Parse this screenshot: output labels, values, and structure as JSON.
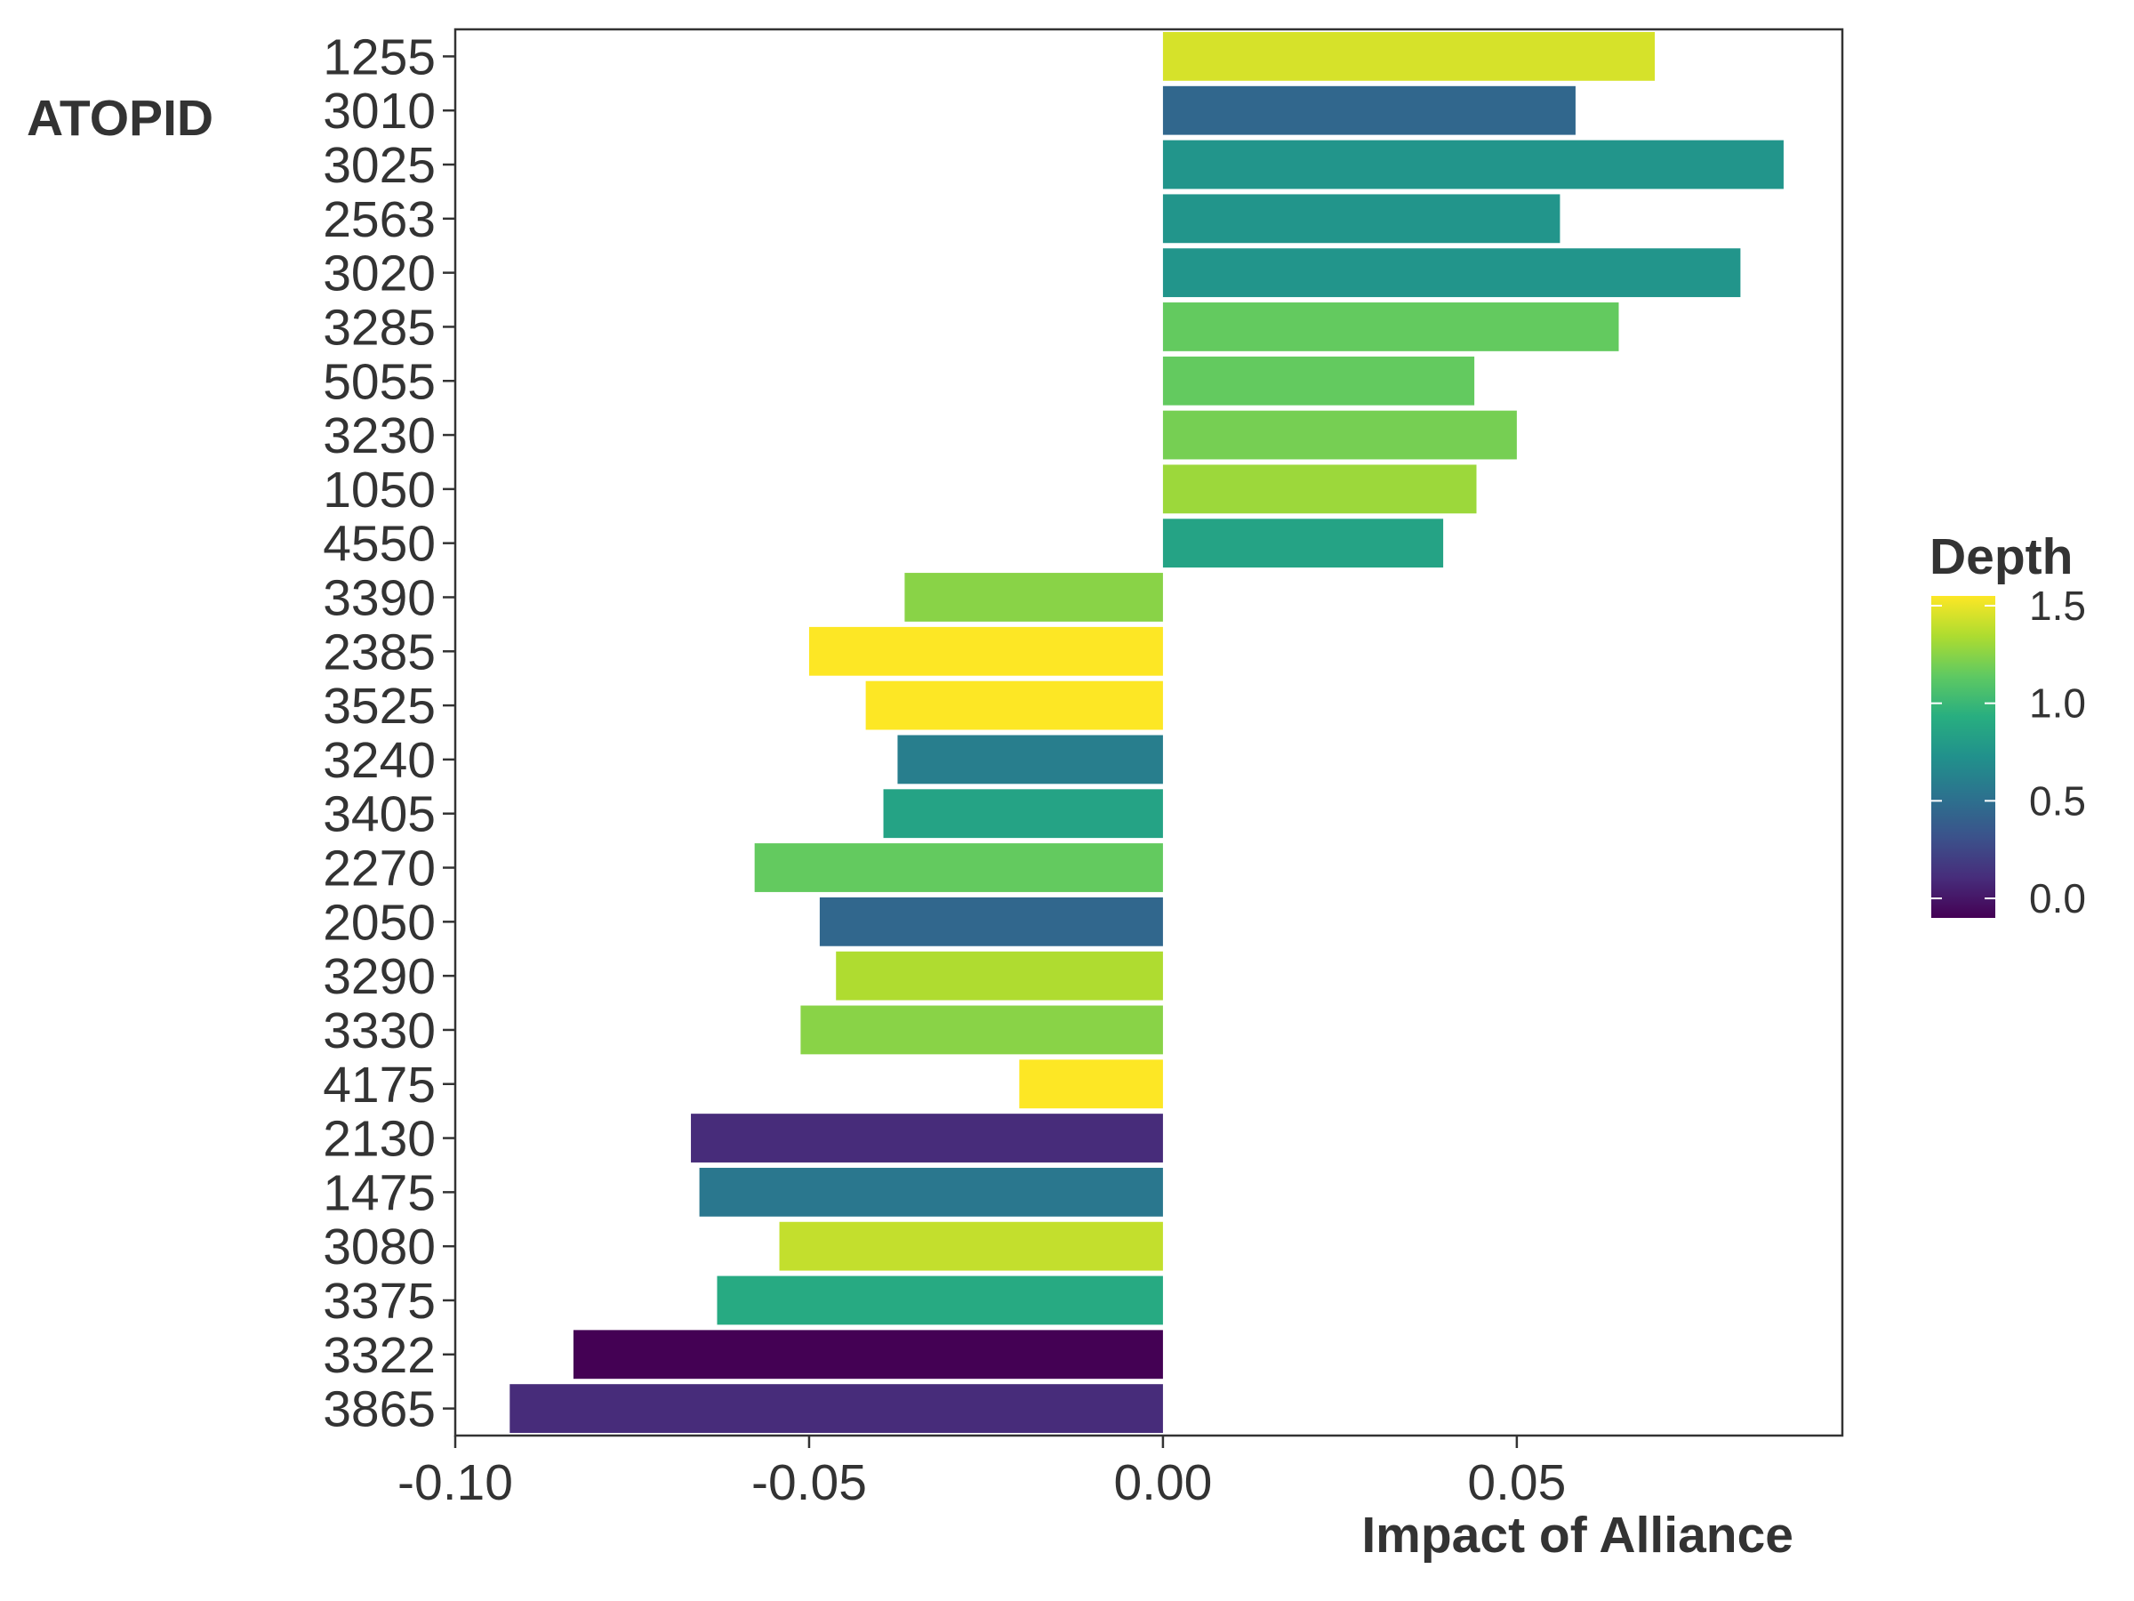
{
  "chart_data": {
    "type": "bar",
    "orientation": "horizontal",
    "ylabel": "ATOPID",
    "xlabel": "Impact of Alliance",
    "xlim": [
      -0.1,
      0.096
    ],
    "xticks": [
      -0.1,
      -0.05,
      0.0,
      0.05
    ],
    "xtick_labels": [
      "-0.10",
      "-0.05",
      "0.00",
      "0.05"
    ],
    "legend": {
      "title": "Depth",
      "placement": "right",
      "range": [
        -0.1,
        1.55
      ],
      "ticks": [
        0.0,
        0.5,
        1.0,
        1.5
      ],
      "tick_labels": [
        "0.0",
        "0.5",
        "1.0",
        "1.5"
      ]
    },
    "categories": [
      "1255",
      "3010",
      "3025",
      "2563",
      "3020",
      "3285",
      "5055",
      "3230",
      "1050",
      "4550",
      "3390",
      "2385",
      "3525",
      "3240",
      "3405",
      "2270",
      "2050",
      "3290",
      "3330",
      "4175",
      "2130",
      "1475",
      "3080",
      "3375",
      "3322",
      "3865"
    ],
    "values": [
      0.0695,
      0.0583,
      0.0877,
      0.0561,
      0.0816,
      0.0644,
      0.044,
      0.05,
      0.0443,
      0.0396,
      -0.0365,
      -0.05,
      -0.042,
      -0.0375,
      -0.0395,
      -0.0577,
      -0.0485,
      -0.0462,
      -0.0512,
      -0.0203,
      -0.0667,
      -0.0655,
      -0.0542,
      -0.063,
      -0.0833,
      -0.0923
    ],
    "depth": [
      1.45,
      0.45,
      0.75,
      0.75,
      0.75,
      1.15,
      1.15,
      1.2,
      1.3,
      0.85,
      1.25,
      1.55,
      1.55,
      0.6,
      0.85,
      1.15,
      0.45,
      1.35,
      1.25,
      1.55,
      0.1,
      0.55,
      1.4,
      0.9,
      -0.1,
      0.1
    ]
  }
}
